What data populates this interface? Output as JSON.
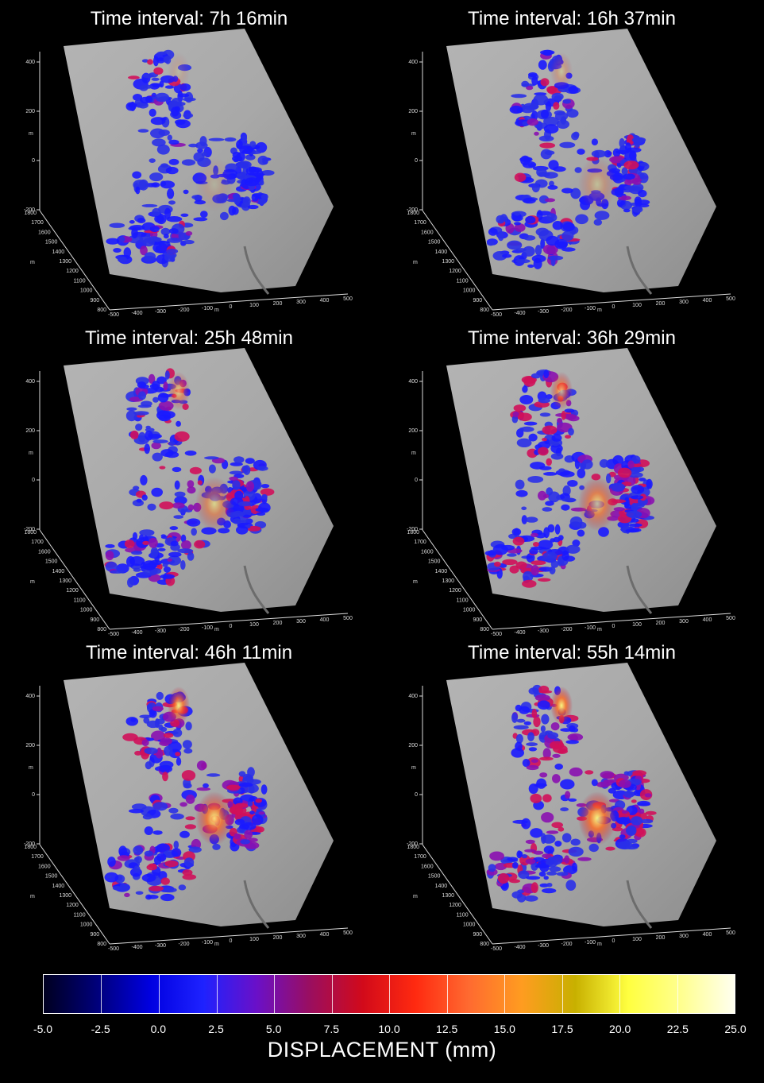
{
  "panels": [
    {
      "title": "Time interval: 7h 16min"
    },
    {
      "title": "Time interval: 16h 37min"
    },
    {
      "title": "Time interval: 25h 48min"
    },
    {
      "title": "Time interval: 36h 29min"
    },
    {
      "title": "Time interval: 46h 11min"
    },
    {
      "title": "Time interval: 55h 14min"
    }
  ],
  "axes": {
    "vertical_label": "m",
    "vertical_ticks": [
      "400",
      "200",
      "0",
      "-200"
    ],
    "depth_label": "m",
    "depth_ticks": [
      "1800",
      "1700",
      "1600",
      "1500",
      "1400",
      "1300",
      "1200",
      "1100",
      "1000",
      "900",
      "800"
    ],
    "horizontal_label": "m",
    "horizontal_ticks": [
      "-500",
      "-400",
      "-300",
      "-200",
      "-100",
      "0",
      "100",
      "200",
      "300",
      "400",
      "500"
    ]
  },
  "colorbar": {
    "title": "DISPLACEMENT (mm)",
    "ticks": [
      "-5.0",
      "-2.5",
      "0.0",
      "2.5",
      "5.0",
      "7.5",
      "10.0",
      "12.5",
      "15.0",
      "17.5",
      "20.0",
      "22.5",
      "25.0"
    ],
    "colors": [
      "#000020",
      "#00007a",
      "#0000e0",
      "#1e22ff",
      "#6a10c8",
      "#9a0e60",
      "#d20a1a",
      "#ff2a10",
      "#ff6a30",
      "#ff9c20",
      "#c8b000",
      "#ffff40",
      "#ffff90",
      "#fffff0"
    ]
  }
}
